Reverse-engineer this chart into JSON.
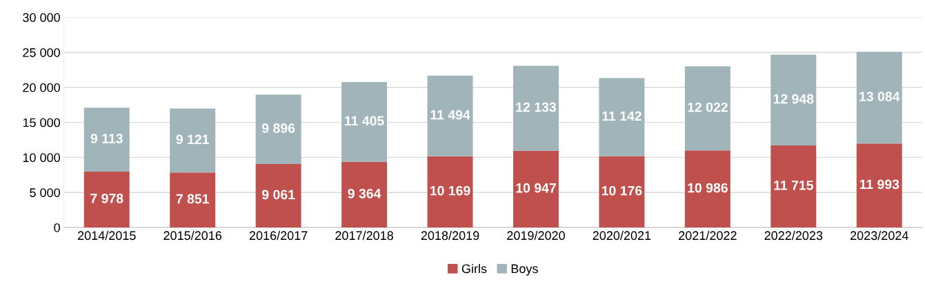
{
  "chart_data": {
    "type": "bar",
    "stacked": true,
    "categories": [
      "2014/2015",
      "2015/2016",
      "2016/2017",
      "2017/2018",
      "2018/2019",
      "2019/2020",
      "2020/2021",
      "2021/2022",
      "2022/2023",
      "2023/2024"
    ],
    "series": [
      {
        "name": "Girls",
        "color": "#c0504d",
        "values": [
          7978,
          7851,
          9061,
          9364,
          10169,
          10947,
          10176,
          10986,
          11715,
          11993
        ],
        "value_labels": [
          "7 978",
          "7 851",
          "9 061",
          "9 364",
          "10 169",
          "10 947",
          "10 176",
          "10 986",
          "11 715",
          "11 993"
        ]
      },
      {
        "name": "Boys",
        "color": "#a0b4ba",
        "values": [
          9113,
          9121,
          9896,
          11405,
          11494,
          12133,
          11142,
          12022,
          12948,
          13084
        ],
        "value_labels": [
          "9 113",
          "9 121",
          "9 896",
          "11 405",
          "11 494",
          "12 133",
          "11 142",
          "12 022",
          "12 948",
          "13 084"
        ]
      }
    ],
    "ylim": [
      0,
      30000
    ],
    "yticks": [
      0,
      {
        "value": 5000,
        "label": "5 000"
      },
      {
        "value": 10000,
        "label": "10 000"
      },
      {
        "value": 15000,
        "label": "15 000"
      },
      {
        "value": 20000,
        "label": "20 000"
      },
      {
        "value": 25000,
        "label": "25 000"
      },
      {
        "value": 30000,
        "label": "30 000"
      }
    ],
    "grid": "y",
    "legend": "bottom"
  }
}
